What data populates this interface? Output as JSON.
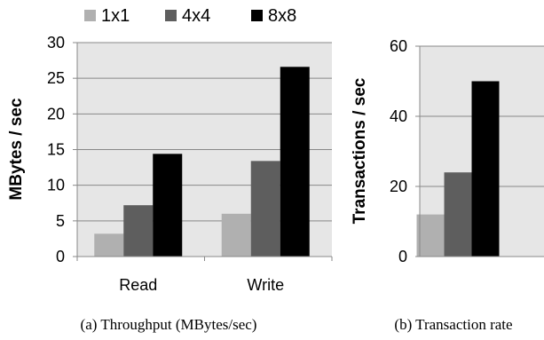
{
  "legend": {
    "placement": "top",
    "entries": [
      {
        "label": "1x1",
        "color": "#b0b0b0"
      },
      {
        "label": "4x4",
        "color": "#5e5e5e"
      },
      {
        "label": "8x8",
        "color": "#000000"
      }
    ]
  },
  "chart_data": [
    {
      "type": "bar",
      "title": "",
      "ylabel": "MBytes / sec",
      "xlabel": "",
      "categories": [
        "Read",
        "Write"
      ],
      "series": [
        {
          "name": "1x1",
          "color": "#b0b0b0",
          "values": [
            3.2,
            6.0
          ]
        },
        {
          "name": "4x4",
          "color": "#5e5e5e",
          "values": [
            7.2,
            13.4
          ]
        },
        {
          "name": "8x8",
          "color": "#000000",
          "values": [
            14.4,
            26.6
          ]
        }
      ],
      "ylim": [
        0,
        30
      ],
      "yticks": [
        0,
        5,
        10,
        15,
        20,
        25,
        30
      ],
      "grid": true,
      "plot_background": "#e6e6e6",
      "caption": "(a)  Throughput (MBytes/sec)"
    },
    {
      "type": "bar",
      "title": "",
      "ylabel": "Transactions / sec",
      "xlabel": "",
      "categories": [
        ""
      ],
      "series": [
        {
          "name": "1x1",
          "color": "#b0b0b0",
          "values": [
            12
          ]
        },
        {
          "name": "4x4",
          "color": "#5e5e5e",
          "values": [
            24
          ]
        },
        {
          "name": "8x8",
          "color": "#000000",
          "values": [
            50
          ]
        }
      ],
      "ylim": [
        0,
        60
      ],
      "yticks": [
        0,
        20,
        40,
        60
      ],
      "grid": true,
      "plot_background": "#e6e6e6",
      "caption": "(b)  Transaction rate"
    }
  ]
}
